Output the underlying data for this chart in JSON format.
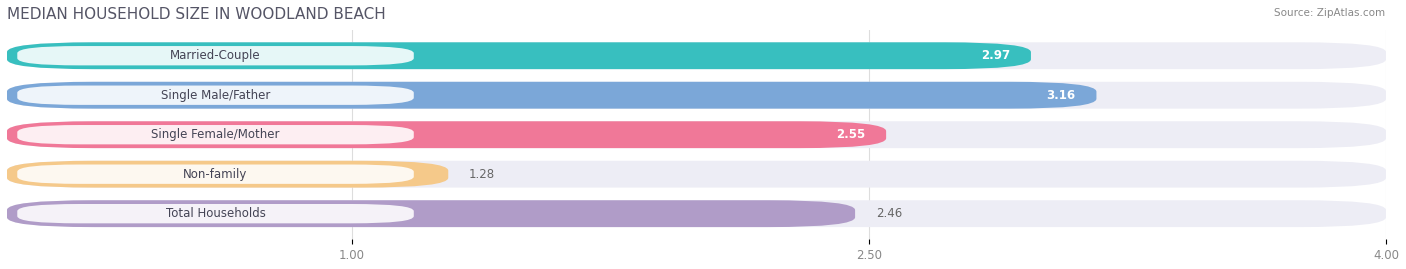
{
  "title": "MEDIAN HOUSEHOLD SIZE IN WOODLAND BEACH",
  "source": "Source: ZipAtlas.com",
  "categories": [
    "Married-Couple",
    "Single Male/Father",
    "Single Female/Mother",
    "Non-family",
    "Total Households"
  ],
  "values": [
    2.97,
    3.16,
    2.55,
    1.28,
    2.46
  ],
  "bar_colors": [
    "#38bfbf",
    "#7ba7d8",
    "#f07898",
    "#f5c98a",
    "#b09cc8"
  ],
  "bar_bg_colors": [
    "#ededf5",
    "#ededf5",
    "#ededf5",
    "#ededf5",
    "#ededf5"
  ],
  "xlim": [
    0.0,
    4.0
  ],
  "xticks": [
    1.0,
    2.5,
    4.0
  ],
  "xmin": 0.0,
  "label_fontsize": 8.5,
  "value_fontsize": 8.5,
  "title_fontsize": 11,
  "title_color": "#555566",
  "background_color": "#ffffff"
}
